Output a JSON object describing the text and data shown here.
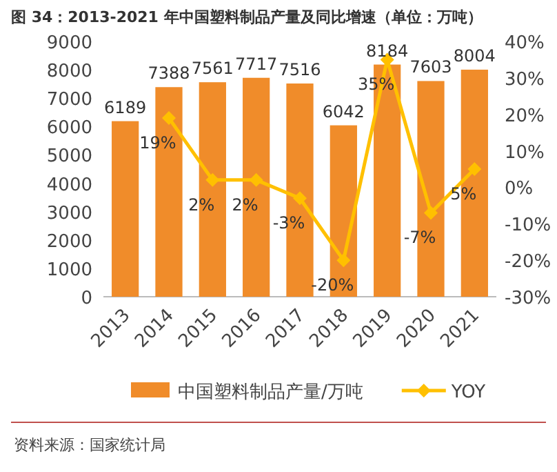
{
  "chart_data": {
    "type": "bar",
    "title": "图 34：2013-2021 年中国塑料制品产量及同比增速（单位：万吨）",
    "categories": [
      "2013",
      "2014",
      "2015",
      "2016",
      "2017",
      "2018",
      "2019",
      "2020",
      "2021"
    ],
    "series": [
      {
        "name": "中国塑料制品产量/万吨",
        "color": "#f08c2a",
        "values": [
          6189,
          7388,
          7561,
          7717,
          7516,
          6042,
          8184,
          7603,
          8004
        ]
      },
      {
        "name": "YOY",
        "type": "line",
        "axis": "y2",
        "color": "#ffc000",
        "marker": "diamond",
        "values": [
          null,
          19,
          2,
          2,
          -3,
          -20,
          35,
          -7,
          5
        ],
        "value_labels": [
          null,
          "19%",
          "2%",
          "2%",
          "-3%",
          "-20%",
          "35%",
          "-7%",
          "5%"
        ]
      }
    ],
    "ylim": [
      0,
      9000
    ],
    "yticks": [
      0,
      1000,
      2000,
      3000,
      4000,
      5000,
      6000,
      7000,
      8000,
      9000
    ],
    "y2lim": [
      -30,
      40
    ],
    "y2ticks": [
      {
        "value": -30,
        "label": "-30%"
      },
      {
        "value": -20,
        "label": "-20%"
      },
      {
        "value": -10,
        "label": "-10%"
      },
      {
        "value": 0,
        "label": "0%"
      },
      {
        "value": 10,
        "label": "10%"
      },
      {
        "value": 20,
        "label": "20%"
      },
      {
        "value": 30,
        "label": "30%"
      },
      {
        "value": 40,
        "label": "40%"
      }
    ],
    "data_labels": true,
    "legend": "bottom",
    "annotations": [
      "资料来源：国家统计局"
    ]
  }
}
